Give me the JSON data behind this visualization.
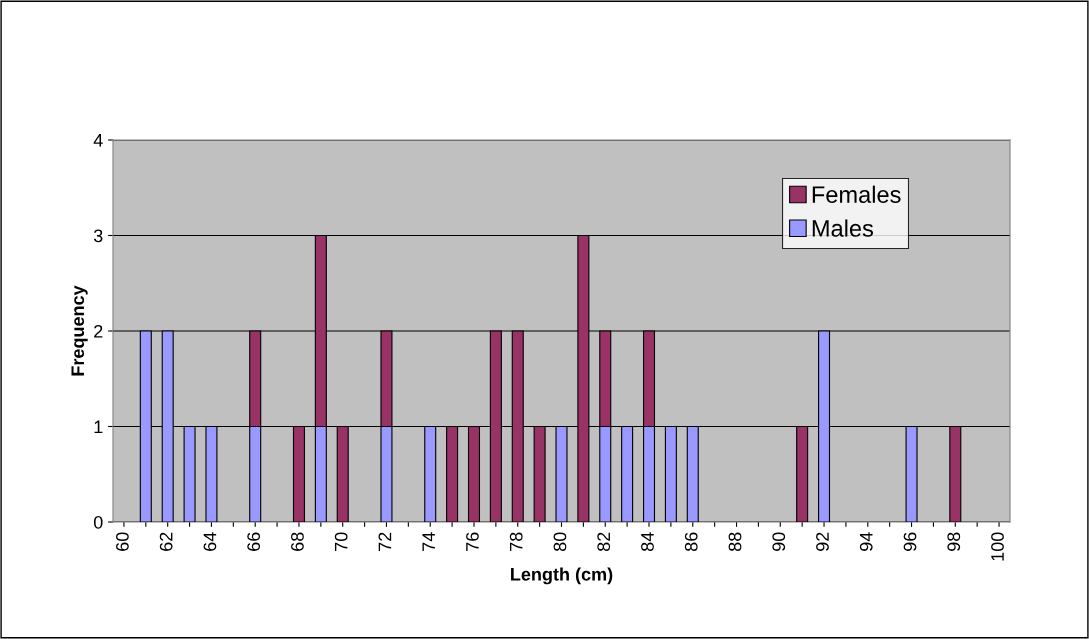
{
  "chart_data": {
    "type": "bar",
    "stacked": true,
    "xlabel": "Length (cm)",
    "ylabel": "Frequency",
    "categories": [
      "60",
      null,
      "62",
      null,
      "64",
      null,
      "66",
      null,
      "68",
      null,
      "70",
      null,
      "72",
      null,
      "74",
      null,
      "76",
      null,
      "78",
      null,
      "80",
      null,
      "82",
      null,
      "84",
      null,
      "86",
      null,
      "88",
      null,
      "90",
      null,
      "92",
      null,
      "94",
      null,
      "96",
      null,
      "98",
      null,
      "100"
    ],
    "series": [
      {
        "name": "Males",
        "color": "#9999ff",
        "values": [
          0,
          2,
          2,
          1,
          1,
          0,
          1,
          0,
          0,
          1,
          0,
          0,
          1,
          0,
          1,
          0,
          0,
          0,
          0,
          0,
          1,
          0,
          1,
          1,
          1,
          1,
          1,
          0,
          0,
          0,
          0,
          0,
          2,
          0,
          0,
          0,
          1,
          0,
          0,
          0,
          0
        ]
      },
      {
        "name": "Females",
        "color": "#993366",
        "values": [
          0,
          0,
          0,
          0,
          0,
          0,
          1,
          0,
          1,
          2,
          1,
          0,
          1,
          0,
          0,
          1,
          1,
          2,
          2,
          1,
          0,
          3,
          1,
          0,
          1,
          0,
          0,
          0,
          0,
          0,
          0,
          1,
          0,
          0,
          0,
          0,
          0,
          0,
          1,
          0,
          0
        ]
      }
    ],
    "ylim": [
      0,
      4
    ],
    "yticks": [
      0,
      1,
      2,
      3,
      4
    ],
    "grid": "y",
    "legend": "top right"
  }
}
